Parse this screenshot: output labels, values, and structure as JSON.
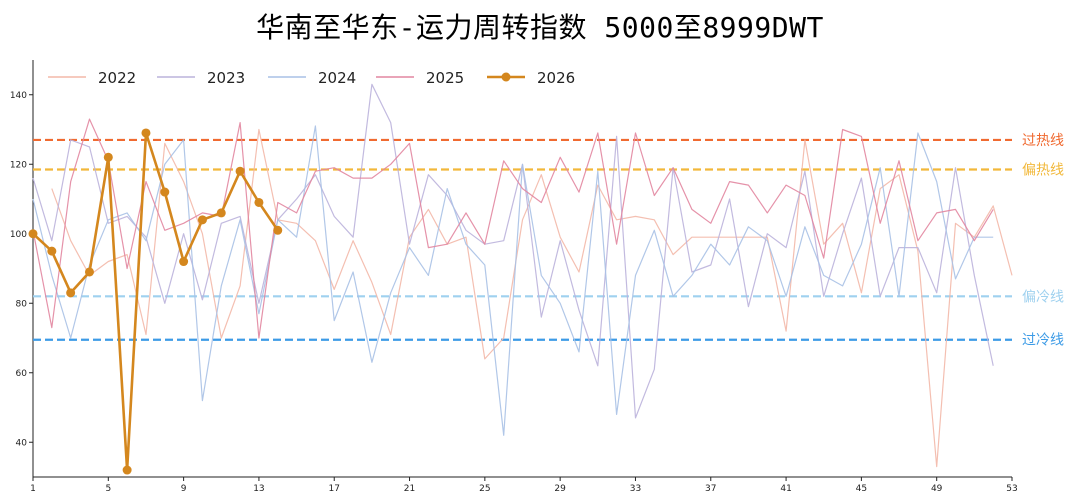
{
  "chart_data": {
    "type": "line",
    "title": "华南至华东-运力周转指数 5000至8999DWT",
    "xlabel": "",
    "ylabel": "",
    "xlim": [
      1,
      53
    ],
    "ylim": [
      30,
      150
    ],
    "x_ticks": [
      1,
      5,
      9,
      13,
      17,
      21,
      25,
      29,
      33,
      37,
      41,
      45,
      49,
      53
    ],
    "y_ticks": [
      40,
      60,
      80,
      100,
      120,
      140
    ],
    "legend_position": "top-left",
    "grid": false,
    "reference_lines": [
      {
        "label": "过热线",
        "value": 127,
        "color": "#f06a30"
      },
      {
        "label": "偏热线",
        "value": 118.5,
        "color": "#f2b83a"
      },
      {
        "label": "偏冷线",
        "value": 82,
        "color": "#9fd1ef"
      },
      {
        "label": "过冷线",
        "value": 69.5,
        "color": "#3d9be6"
      }
    ],
    "series": [
      {
        "name": "2022",
        "color": "#f3b8a8",
        "x": [
          2,
          3,
          4,
          5,
          6,
          7,
          8,
          9,
          10,
          11,
          12,
          13,
          14,
          15,
          16,
          17,
          18,
          19,
          20,
          21,
          22,
          23,
          24,
          25,
          26,
          27,
          28,
          29,
          30,
          31,
          32,
          33,
          34,
          35,
          36,
          37,
          38,
          39,
          40,
          41,
          42,
          43,
          44,
          45,
          46,
          47,
          48,
          49,
          50,
          51,
          52,
          53
        ],
        "values": [
          113,
          98,
          88,
          92,
          94,
          71,
          126,
          115,
          100,
          70,
          85,
          130,
          104,
          103,
          98,
          84,
          98,
          86,
          71,
          99,
          107,
          97,
          99,
          64,
          70,
          104,
          117,
          99,
          89,
          114,
          104,
          105,
          104,
          94,
          99,
          99,
          99,
          99,
          99,
          72,
          127,
          97,
          103,
          83,
          113,
          117,
          95,
          33,
          103,
          99,
          108,
          88
        ]
      },
      {
        "name": "2023",
        "color": "#bbb3dc",
        "x": [
          1,
          2,
          3,
          4,
          5,
          6,
          7,
          8,
          9,
          10,
          11,
          12,
          13,
          14,
          15,
          16,
          17,
          18,
          19,
          20,
          21,
          22,
          23,
          24,
          25,
          26,
          27,
          28,
          29,
          30,
          31,
          32,
          33,
          34,
          35,
          36,
          37,
          38,
          39,
          40,
          41,
          42,
          43,
          44,
          45,
          46,
          47,
          48,
          49,
          50,
          51,
          52
        ],
        "values": [
          116,
          98,
          127,
          125,
          103,
          105,
          99,
          80,
          100,
          81,
          103,
          105,
          80,
          104,
          110,
          117,
          105,
          99,
          143,
          132,
          97,
          117,
          111,
          101,
          97,
          98,
          120,
          76,
          98,
          78,
          62,
          128,
          47,
          61,
          119,
          89,
          91,
          110,
          79,
          100,
          96,
          118,
          82,
          100,
          116,
          82,
          96,
          96,
          83,
          119,
          88,
          62
        ]
      },
      {
        "name": "2024",
        "color": "#a9c1e6",
        "x": [
          1,
          2,
          3,
          4,
          5,
          6,
          7,
          8,
          9,
          10,
          11,
          12,
          13,
          14,
          15,
          16,
          17,
          18,
          19,
          20,
          21,
          22,
          23,
          24,
          25,
          26,
          27,
          28,
          29,
          30,
          31,
          32,
          33,
          34,
          35,
          36,
          37,
          38,
          39,
          40,
          41,
          42,
          43,
          44,
          45,
          46,
          47,
          48,
          49,
          50,
          51,
          52
        ],
        "values": [
          110,
          88,
          70,
          91,
          104,
          106,
          98,
          120,
          127,
          52,
          85,
          104,
          77,
          104,
          99,
          131,
          75,
          89,
          63,
          83,
          96,
          88,
          113,
          97,
          91,
          42,
          120,
          88,
          80,
          66,
          118,
          48,
          88,
          101,
          82,
          88,
          97,
          91,
          102,
          98,
          82,
          102,
          88,
          85,
          97,
          119,
          82,
          129,
          115,
          87,
          99,
          99
        ]
      },
      {
        "name": "2025",
        "color": "#e286a0",
        "x": [
          1,
          2,
          3,
          4,
          5,
          6,
          7,
          8,
          9,
          10,
          11,
          12,
          13,
          14,
          15,
          16,
          17,
          18,
          19,
          20,
          21,
          22,
          23,
          24,
          25,
          26,
          27,
          28,
          29,
          30,
          31,
          32,
          33,
          34,
          35,
          36,
          37,
          38,
          39,
          40,
          41,
          42,
          43,
          44,
          45,
          46,
          47,
          48,
          49,
          50,
          51,
          52
        ],
        "values": [
          101,
          73,
          115,
          133,
          121,
          90,
          115,
          101,
          103,
          106,
          105,
          132,
          70,
          109,
          106,
          118,
          119,
          116,
          116,
          120,
          126,
          96,
          97,
          106,
          97,
          121,
          113,
          109,
          122,
          112,
          129,
          97,
          129,
          111,
          119,
          107,
          103,
          115,
          114,
          106,
          114,
          111,
          93,
          130,
          128,
          103,
          121,
          98,
          106,
          107,
          98,
          107
        ]
      },
      {
        "name": "2026",
        "color": "#d4871e",
        "x": [
          1,
          2,
          3,
          4,
          5,
          6,
          7,
          8,
          9,
          10,
          11,
          12,
          13,
          14
        ],
        "values": [
          100,
          95,
          83,
          89,
          122,
          32,
          129,
          112,
          92,
          104,
          106,
          118,
          109,
          101
        ]
      }
    ]
  }
}
